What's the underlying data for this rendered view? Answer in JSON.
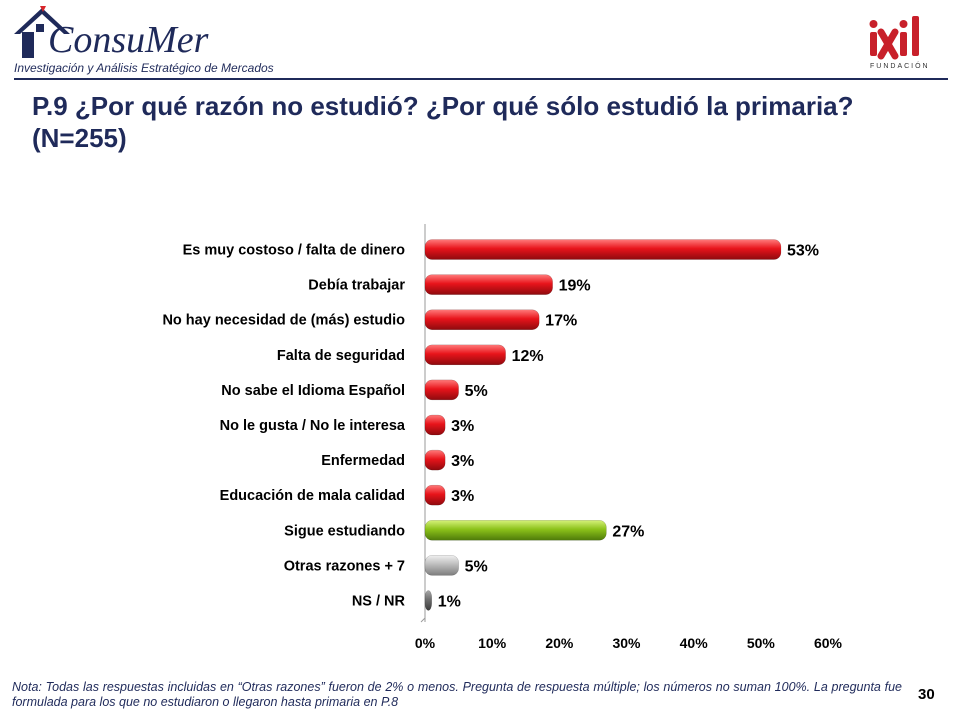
{
  "header": {
    "brand_name": "ConsuMer",
    "brand_tagline": "Investigación y Análisis Estratégico de Mercados",
    "partner_name": "ixil",
    "partner_tagline": "FUNDACIÓN"
  },
  "title": "P.9 ¿Por qué razón no estudió? ¿Por qué sólo estudió la primaria? (N=255)",
  "chart_data": {
    "type": "bar",
    "orientation": "horizontal",
    "title": "",
    "xlabel": "",
    "ylabel": "",
    "xlim": [
      0,
      60
    ],
    "x_ticks": [
      "0%",
      "10%",
      "20%",
      "30%",
      "40%",
      "50%",
      "60%"
    ],
    "grid": false,
    "legend": "none",
    "categories": [
      "Es muy costoso / falta de dinero",
      "Debía trabajar",
      "No hay necesidad de (más) estudio",
      "Falta de seguridad",
      "No sabe el Idioma Español",
      "No le gusta / No le interesa",
      "Enfermedad",
      "Educación de mala calidad",
      "Sigue estudiando",
      "Otras razones + 7",
      "NS / NR"
    ],
    "values": [
      53,
      19,
      17,
      12,
      5,
      3,
      3,
      3,
      27,
      5,
      1
    ],
    "data_labels": [
      "53%",
      "19%",
      "17%",
      "12%",
      "5%",
      "3%",
      "3%",
      "3%",
      "27%",
      "5%",
      "1%"
    ],
    "bar_colors": [
      "#e8141b",
      "#e8141b",
      "#e8141b",
      "#e8141b",
      "#e8141b",
      "#e8141b",
      "#e8141b",
      "#e8141b",
      "#8cc21a",
      "#b8b8b8",
      "#6e6e6e"
    ]
  },
  "footnote": "Nota: Todas las respuestas incluidas en “Otras razones” fueron de 2% o menos. Pregunta de respuesta múltiple; los números no suman 100%. La pregunta fue formulada para los que no estudiaron o llegaron hasta primaria en P.8",
  "page_number": "30"
}
